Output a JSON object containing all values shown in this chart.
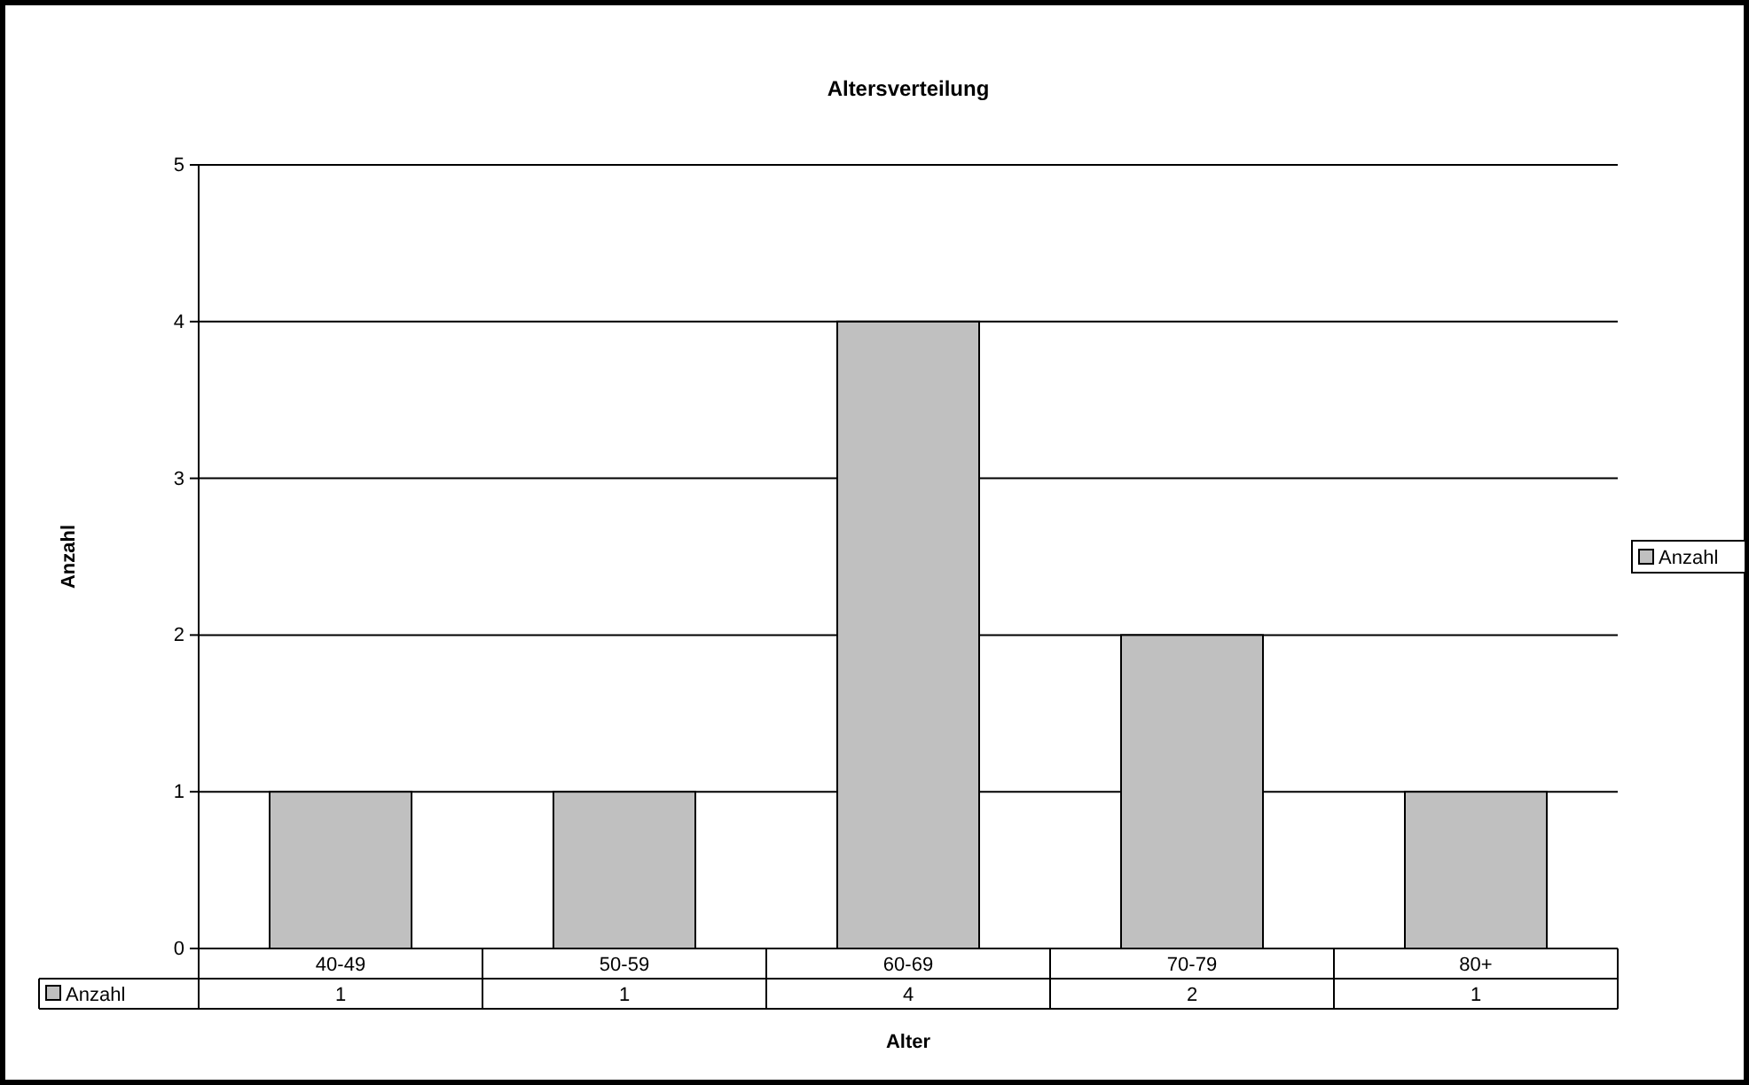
{
  "chart_data": {
    "type": "bar",
    "title": "Altersverteilung",
    "xlabel": "Alter",
    "ylabel": "Anzahl",
    "categories": [
      "40-49",
      "50-59",
      "60-69",
      "70-79",
      "80+"
    ],
    "series": [
      {
        "name": "Anzahl",
        "color": "#c0c0c0",
        "values": [
          1,
          1,
          4,
          2,
          1
        ]
      }
    ],
    "ylim": [
      0,
      5
    ],
    "yticks": [
      0,
      1,
      2,
      3,
      4,
      5
    ],
    "grid": "y",
    "legend": "right",
    "data_labels": true
  }
}
